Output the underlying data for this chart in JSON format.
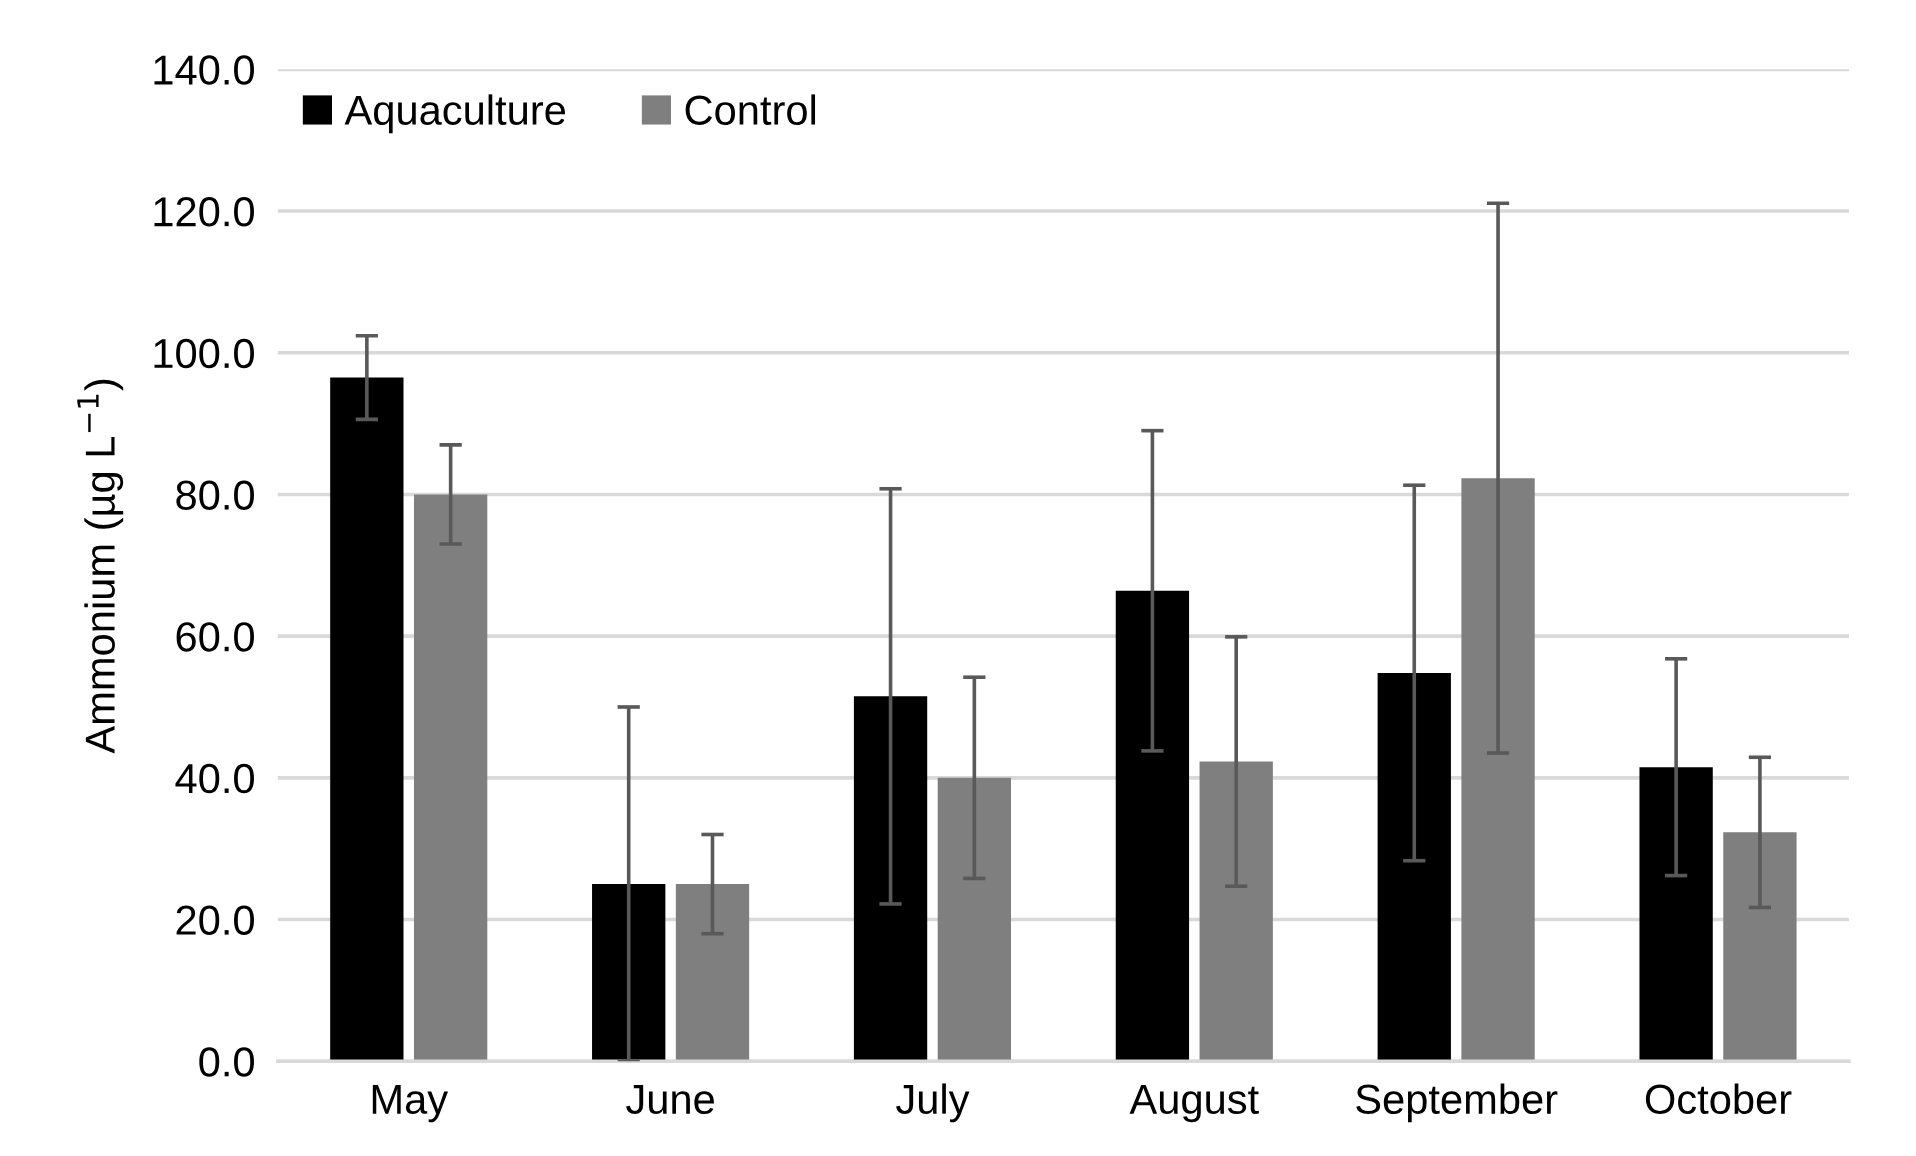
{
  "chart_data": {
    "type": "bar",
    "ylabel": "Ammonium (µg L$^{−1}$)",
    "categories": [
      "May",
      "June",
      "July",
      "August",
      "September",
      "October"
    ],
    "series": [
      {
        "name": "Aquaculture",
        "color": "#000000",
        "values": [
          96.5,
          25.0,
          51.5,
          66.4,
          54.8,
          41.5
        ],
        "errors": [
          5.9,
          25.0,
          29.3,
          22.6,
          26.5,
          15.3
        ]
      },
      {
        "name": "Control",
        "color": "#7f7f7f",
        "values": [
          80.0,
          25.0,
          40.0,
          42.3,
          82.3,
          32.3
        ],
        "errors": [
          7.0,
          7.0,
          14.2,
          17.6,
          38.8,
          10.6
        ]
      }
    ],
    "ylim": [
      0,
      140
    ],
    "yticks": [
      {
        "value": 0,
        "label": "0.0"
      },
      {
        "value": 20,
        "label": "20.0"
      },
      {
        "value": 40,
        "label": "40.0"
      },
      {
        "value": 60,
        "label": "60.0"
      },
      {
        "value": 80,
        "label": "80.0"
      },
      {
        "value": 100,
        "label": "100.0"
      },
      {
        "value": 120,
        "label": "120.0"
      },
      {
        "value": 140,
        "label": "140.0"
      }
    ],
    "grid": "y",
    "legend": "top left"
  }
}
